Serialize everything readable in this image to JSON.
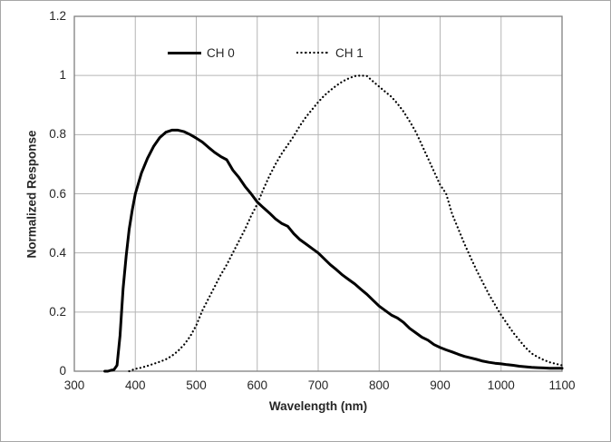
{
  "figure": {
    "background": "#ffffff",
    "border_color": "#a6a6a6"
  },
  "chart_data": {
    "type": "line",
    "title": "",
    "xlabel": "Wavelength (nm)",
    "ylabel": "Normalized Response",
    "xlim": [
      300,
      1100
    ],
    "ylim": [
      0,
      1.2
    ],
    "x_ticks": [
      300,
      400,
      500,
      600,
      700,
      800,
      900,
      1000,
      1100
    ],
    "y_ticks": [
      1.2,
      1,
      0.8,
      0.6,
      0.4,
      0.2,
      0
    ],
    "grid": true,
    "legend_position": "top-inside",
    "colors": {
      "series": "#000000",
      "gridline": "#b5b5b5",
      "plot_border": "#7f7f7f",
      "text": "#262626"
    },
    "series": [
      {
        "name": "CH 0",
        "style": "solid",
        "color": "#000000",
        "x": [
          350,
          355,
          360,
          365,
          370,
          375,
          380,
          385,
          390,
          395,
          400,
          410,
          420,
          430,
          440,
          450,
          460,
          470,
          480,
          490,
          500,
          510,
          520,
          530,
          540,
          550,
          560,
          570,
          580,
          590,
          600,
          610,
          620,
          630,
          640,
          650,
          660,
          670,
          680,
          690,
          700,
          710,
          720,
          730,
          740,
          750,
          760,
          770,
          780,
          790,
          800,
          810,
          820,
          830,
          840,
          850,
          860,
          870,
          880,
          890,
          900,
          910,
          920,
          930,
          940,
          950,
          960,
          970,
          980,
          990,
          1000,
          1010,
          1020,
          1030,
          1040,
          1050,
          1060,
          1070,
          1080,
          1090,
          1100
        ],
        "y": [
          0,
          0,
          0.003,
          0.005,
          0.02,
          0.12,
          0.28,
          0.39,
          0.48,
          0.545,
          0.6,
          0.67,
          0.72,
          0.76,
          0.79,
          0.808,
          0.815,
          0.815,
          0.81,
          0.8,
          0.788,
          0.775,
          0.757,
          0.74,
          0.726,
          0.715,
          0.68,
          0.655,
          0.625,
          0.6,
          0.572,
          0.553,
          0.535,
          0.515,
          0.5,
          0.49,
          0.465,
          0.445,
          0.43,
          0.415,
          0.4,
          0.38,
          0.36,
          0.343,
          0.325,
          0.31,
          0.295,
          0.277,
          0.26,
          0.24,
          0.22,
          0.205,
          0.19,
          0.18,
          0.165,
          0.145,
          0.13,
          0.115,
          0.105,
          0.09,
          0.08,
          0.072,
          0.065,
          0.057,
          0.05,
          0.045,
          0.04,
          0.034,
          0.03,
          0.027,
          0.025,
          0.022,
          0.02,
          0.017,
          0.015,
          0.013,
          0.012,
          0.011,
          0.01,
          0.01,
          0.01
        ]
      },
      {
        "name": "CH 1",
        "style": "dotted",
        "color": "#000000",
        "x": [
          390,
          400,
          410,
          420,
          430,
          440,
          450,
          460,
          470,
          480,
          490,
          500,
          510,
          520,
          530,
          540,
          550,
          560,
          570,
          580,
          590,
          600,
          610,
          620,
          630,
          640,
          650,
          660,
          670,
          680,
          690,
          700,
          710,
          720,
          730,
          740,
          750,
          760,
          770,
          780,
          790,
          800,
          810,
          820,
          830,
          840,
          850,
          860,
          870,
          880,
          890,
          900,
          910,
          920,
          930,
          940,
          950,
          960,
          970,
          980,
          990,
          1000,
          1010,
          1020,
          1030,
          1040,
          1050,
          1060,
          1070,
          1080,
          1090,
          1100
        ],
        "y": [
          0,
          0.008,
          0.012,
          0.018,
          0.025,
          0.032,
          0.04,
          0.052,
          0.068,
          0.09,
          0.118,
          0.155,
          0.205,
          0.245,
          0.285,
          0.325,
          0.36,
          0.4,
          0.44,
          0.48,
          0.525,
          0.565,
          0.615,
          0.66,
          0.7,
          0.735,
          0.765,
          0.795,
          0.83,
          0.86,
          0.885,
          0.91,
          0.932,
          0.95,
          0.966,
          0.98,
          0.99,
          0.998,
          1.0,
          0.998,
          0.98,
          0.962,
          0.945,
          0.928,
          0.905,
          0.878,
          0.845,
          0.81,
          0.765,
          0.72,
          0.675,
          0.63,
          0.6,
          0.53,
          0.48,
          0.43,
          0.385,
          0.34,
          0.3,
          0.26,
          0.225,
          0.19,
          0.16,
          0.13,
          0.105,
          0.08,
          0.06,
          0.048,
          0.038,
          0.03,
          0.025,
          0.02
        ]
      }
    ]
  }
}
